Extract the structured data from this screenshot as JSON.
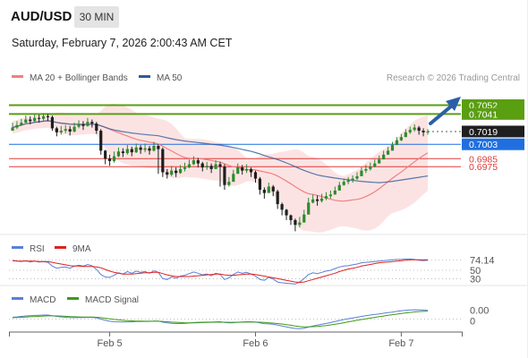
{
  "header": {
    "symbol": "AUD/USD",
    "timeframe": "30 MIN",
    "datetime": "Saturday, February 7, 2026 2:00:43 AM CET"
  },
  "credit": "Research © 2026 Trading Central",
  "colors": {
    "resistance": "#5a9e12",
    "current": "#1f1f1f",
    "support_blue": "#1f6fe0",
    "support_red": "#e03a3a",
    "ma20": "#f08080",
    "ma50": "#2d5b9a",
    "bollinger_fill": "#fbd9d9",
    "candle_up": "#2e8b2e",
    "candle_down": "#1e1e1e",
    "rsi": "#5b7fd6",
    "rsi_ma": "#e02020",
    "macd": "#5b7fd6",
    "macd_signal": "#3d9b1a",
    "arrow": "#2b5fa8"
  },
  "chart_data": [
    {
      "type": "candlestick",
      "title": "",
      "legend": [
        {
          "label": "MA 20 + Bollinger Bands",
          "color": "#f08080"
        },
        {
          "label": "MA 50",
          "color": "#2d5b9a"
        }
      ],
      "legend_position": "top-left",
      "xticks": [
        {
          "index": 22,
          "label": "Feb 5"
        },
        {
          "index": 55,
          "label": "Feb 6"
        },
        {
          "index": 88,
          "label": "Feb 7"
        }
      ],
      "bar_count": 95,
      "ylim": [
        0.689,
        0.7075
      ],
      "price_levels": [
        {
          "value": 0.7052,
          "label": "0.7052",
          "kind": "resistance"
        },
        {
          "value": 0.7041,
          "label": "0.7041",
          "kind": "resistance"
        },
        {
          "value": 0.7019,
          "label": "0.7019",
          "kind": "current"
        },
        {
          "value": 0.7003,
          "label": "0.7003",
          "kind": "support_blue"
        },
        {
          "value": 0.6985,
          "label": "0.6985",
          "kind": "support_red"
        },
        {
          "value": 0.6975,
          "label": "0.6975",
          "kind": "support_red"
        }
      ],
      "closes": [
        0.7024,
        0.7027,
        0.703,
        0.7034,
        0.7032,
        0.7036,
        0.7035,
        0.7038,
        0.7037,
        0.7023,
        0.7018,
        0.702,
        0.7022,
        0.7019,
        0.7025,
        0.7028,
        0.7026,
        0.7031,
        0.7029,
        0.702,
        0.6995,
        0.6985,
        0.6982,
        0.6988,
        0.6994,
        0.6992,
        0.6997,
        0.6993,
        0.6999,
        0.6996,
        0.6998,
        0.6995,
        0.7001,
        0.6997,
        0.6968,
        0.6965,
        0.697,
        0.6967,
        0.6972,
        0.6974,
        0.6978,
        0.6983,
        0.6979,
        0.6974,
        0.6976,
        0.6972,
        0.6978,
        0.6975,
        0.6952,
        0.6956,
        0.6966,
        0.6974,
        0.697,
        0.6972,
        0.6968,
        0.696,
        0.6946,
        0.6942,
        0.695,
        0.6944,
        0.6928,
        0.6921,
        0.6914,
        0.6908,
        0.6902,
        0.6905,
        0.6915,
        0.693,
        0.6934,
        0.6932,
        0.6935,
        0.6938,
        0.694,
        0.6945,
        0.6952,
        0.6956,
        0.6958,
        0.696,
        0.6963,
        0.697,
        0.6972,
        0.6975,
        0.6979,
        0.6984,
        0.699,
        0.6995,
        0.7002,
        0.7008,
        0.7012,
        0.7018,
        0.7021,
        0.7024,
        0.702,
        0.7018,
        0.7019
      ],
      "highs": [
        0.703,
        0.7032,
        0.7035,
        0.7039,
        0.7038,
        0.7041,
        0.704,
        0.7042,
        0.7041,
        0.7039,
        0.7025,
        0.7026,
        0.7027,
        0.7026,
        0.703,
        0.7033,
        0.7032,
        0.7036,
        0.7034,
        0.7031,
        0.7022,
        0.6996,
        0.699,
        0.6994,
        0.6999,
        0.6998,
        0.7002,
        0.7,
        0.7004,
        0.7002,
        0.7004,
        0.7001,
        0.7006,
        0.7003,
        0.6999,
        0.6972,
        0.6976,
        0.6974,
        0.6977,
        0.698,
        0.6984,
        0.6988,
        0.6986,
        0.6981,
        0.6981,
        0.6979,
        0.6983,
        0.6981,
        0.6978,
        0.6962,
        0.6971,
        0.6979,
        0.6977,
        0.6978,
        0.6974,
        0.697,
        0.6962,
        0.6949,
        0.6955,
        0.6952,
        0.6946,
        0.693,
        0.6922,
        0.6915,
        0.691,
        0.6912,
        0.6921,
        0.6936,
        0.694,
        0.6939,
        0.6941,
        0.6943,
        0.6945,
        0.695,
        0.6956,
        0.696,
        0.6962,
        0.6964,
        0.6968,
        0.6974,
        0.6977,
        0.698,
        0.6984,
        0.6989,
        0.6995,
        0.7,
        0.7006,
        0.7012,
        0.7016,
        0.7022,
        0.7025,
        0.7028,
        0.7026,
        0.7023,
        0.7022
      ],
      "lows": [
        0.702,
        0.7022,
        0.7026,
        0.703,
        0.7028,
        0.7031,
        0.703,
        0.7033,
        0.7032,
        0.702,
        0.7013,
        0.7015,
        0.7017,
        0.7014,
        0.7018,
        0.7023,
        0.7021,
        0.7025,
        0.7024,
        0.7016,
        0.699,
        0.6978,
        0.6976,
        0.698,
        0.6987,
        0.6987,
        0.699,
        0.6988,
        0.6992,
        0.6991,
        0.6993,
        0.699,
        0.6994,
        0.6966,
        0.6962,
        0.696,
        0.6963,
        0.6962,
        0.6966,
        0.6969,
        0.6973,
        0.6977,
        0.6974,
        0.6969,
        0.6971,
        0.6967,
        0.6972,
        0.695,
        0.6946,
        0.695,
        0.6961,
        0.6968,
        0.6965,
        0.6967,
        0.6962,
        0.6955,
        0.694,
        0.6935,
        0.6944,
        0.6938,
        0.6922,
        0.6914,
        0.6908,
        0.6902,
        0.6894,
        0.6899,
        0.6909,
        0.6925,
        0.6929,
        0.6926,
        0.693,
        0.6933,
        0.6935,
        0.694,
        0.6947,
        0.6951,
        0.6953,
        0.6955,
        0.6958,
        0.6965,
        0.6967,
        0.697,
        0.6974,
        0.6979,
        0.6985,
        0.699,
        0.6997,
        0.7003,
        0.7007,
        0.7012,
        0.7016,
        0.7019,
        0.7015,
        0.7013,
        0.7015
      ]
    },
    {
      "type": "line",
      "title": "",
      "legend": [
        {
          "label": "RSI",
          "color": "#5b7fd6"
        },
        {
          "label": "9MA",
          "color": "#e02020"
        }
      ],
      "ylim": [
        20,
        80
      ],
      "reference_levels": [
        {
          "value": 74.14,
          "label": "74.14"
        },
        {
          "value": 50,
          "label": "50"
        },
        {
          "value": 30,
          "label": "30"
        }
      ],
      "rsi_values": [
        74,
        72,
        71,
        73,
        70,
        72,
        70,
        71,
        69,
        60,
        55,
        57,
        58,
        55,
        60,
        62,
        60,
        64,
        61,
        52,
        40,
        34,
        33,
        38,
        44,
        41,
        47,
        43,
        48,
        45,
        47,
        43,
        49,
        45,
        30,
        28,
        34,
        31,
        36,
        38,
        42,
        46,
        43,
        39,
        41,
        37,
        43,
        40,
        28,
        32,
        40,
        46,
        43,
        45,
        41,
        36,
        28,
        26,
        33,
        29,
        22,
        20,
        19,
        18,
        17,
        22,
        30,
        40,
        44,
        42,
        45,
        48,
        50,
        54,
        58,
        60,
        61,
        63,
        65,
        68,
        69,
        70,
        71,
        72,
        73,
        74,
        75,
        76,
        76,
        77,
        77,
        76,
        74,
        73,
        74
      ],
      "ma_values": [
        73,
        72,
        72,
        72,
        72,
        72,
        71,
        71,
        71,
        69,
        67,
        65,
        63,
        61,
        60,
        60,
        59,
        59,
        59,
        58,
        56,
        52,
        48,
        45,
        43,
        41,
        41,
        41,
        42,
        43,
        44,
        44,
        45,
        45,
        42,
        39,
        37,
        35,
        35,
        35,
        35,
        36,
        37,
        38,
        39,
        40,
        41,
        41,
        39,
        38,
        38,
        39,
        40,
        41,
        41,
        40,
        38,
        36,
        34,
        32,
        30,
        28,
        26,
        24,
        22,
        21,
        22,
        25,
        28,
        31,
        34,
        37,
        40,
        43,
        47,
        50,
        53,
        55,
        57,
        60,
        62,
        64,
        66,
        68,
        69,
        70,
        71,
        72,
        73,
        74,
        75,
        75,
        75,
        75,
        75
      ]
    },
    {
      "type": "line",
      "title": "",
      "legend": [
        {
          "label": "MACD",
          "color": "#5b7fd6"
        },
        {
          "label": "MACD Signal",
          "color": "#3d9b1a"
        }
      ],
      "ylim": [
        -1.0,
        1.0
      ],
      "reference_levels": [
        {
          "value": 0.0,
          "label": "0.00"
        },
        {
          "value": 0,
          "label": "0"
        }
      ],
      "macd_values": [
        0.15,
        0.18,
        0.22,
        0.26,
        0.28,
        0.3,
        0.32,
        0.33,
        0.33,
        0.28,
        0.22,
        0.18,
        0.15,
        0.12,
        0.12,
        0.13,
        0.13,
        0.14,
        0.14,
        0.1,
        0.0,
        -0.1,
        -0.18,
        -0.22,
        -0.23,
        -0.24,
        -0.23,
        -0.23,
        -0.21,
        -0.2,
        -0.19,
        -0.19,
        -0.17,
        -0.17,
        -0.25,
        -0.32,
        -0.35,
        -0.37,
        -0.37,
        -0.36,
        -0.33,
        -0.29,
        -0.27,
        -0.26,
        -0.25,
        -0.25,
        -0.23,
        -0.22,
        -0.28,
        -0.31,
        -0.3,
        -0.26,
        -0.24,
        -0.22,
        -0.22,
        -0.25,
        -0.32,
        -0.38,
        -0.4,
        -0.43,
        -0.5,
        -0.58,
        -0.65,
        -0.72,
        -0.78,
        -0.8,
        -0.76,
        -0.66,
        -0.57,
        -0.5,
        -0.43,
        -0.36,
        -0.29,
        -0.21,
        -0.12,
        -0.04,
        0.03,
        0.09,
        0.15,
        0.22,
        0.28,
        0.33,
        0.38,
        0.43,
        0.48,
        0.53,
        0.58,
        0.64,
        0.68,
        0.72,
        0.75,
        0.77,
        0.76,
        0.74,
        0.72
      ],
      "signal_values": [
        0.12,
        0.13,
        0.15,
        0.17,
        0.19,
        0.21,
        0.23,
        0.25,
        0.27,
        0.27,
        0.26,
        0.25,
        0.23,
        0.21,
        0.19,
        0.18,
        0.17,
        0.16,
        0.16,
        0.15,
        0.12,
        0.07,
        0.02,
        -0.03,
        -0.07,
        -0.1,
        -0.13,
        -0.15,
        -0.16,
        -0.17,
        -0.18,
        -0.18,
        -0.18,
        -0.18,
        -0.19,
        -0.22,
        -0.25,
        -0.27,
        -0.29,
        -0.31,
        -0.31,
        -0.31,
        -0.3,
        -0.29,
        -0.28,
        -0.27,
        -0.26,
        -0.25,
        -0.26,
        -0.27,
        -0.27,
        -0.27,
        -0.26,
        -0.25,
        -0.25,
        -0.25,
        -0.26,
        -0.28,
        -0.31,
        -0.33,
        -0.37,
        -0.41,
        -0.46,
        -0.51,
        -0.57,
        -0.62,
        -0.65,
        -0.65,
        -0.63,
        -0.61,
        -0.57,
        -0.53,
        -0.48,
        -0.43,
        -0.37,
        -0.3,
        -0.23,
        -0.17,
        -0.1,
        -0.04,
        0.02,
        0.08,
        0.14,
        0.2,
        0.25,
        0.31,
        0.36,
        0.41,
        0.46,
        0.51,
        0.55,
        0.59,
        0.62,
        0.64,
        0.66
      ]
    }
  ]
}
